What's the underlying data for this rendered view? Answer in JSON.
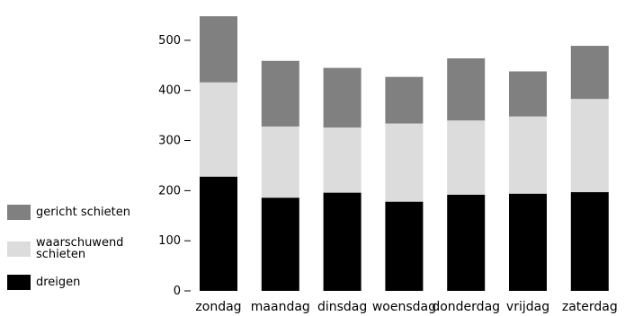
{
  "chart_data": {
    "type": "bar",
    "stacked": true,
    "categories": [
      "zondag",
      "maandag",
      "dinsdag",
      "woensdag",
      "donderdag",
      "vrijdag",
      "zaterdag"
    ],
    "ylim": [
      0,
      550
    ],
    "yticks": [
      0,
      100,
      200,
      300,
      400,
      500
    ],
    "grid": false,
    "legend_position": "left",
    "series": [
      {
        "name": "dreigen",
        "color": "#000000",
        "values": [
          228,
          186,
          196,
          178,
          192,
          194,
          197
        ]
      },
      {
        "name": "waarschuwend\nschieten",
        "color": "#dcdcdc",
        "values": [
          188,
          142,
          130,
          156,
          148,
          154,
          186
        ]
      },
      {
        "name": "gericht schieten",
        "color": "#808080",
        "values": [
          132,
          131,
          119,
          93,
          124,
          90,
          106
        ]
      }
    ]
  }
}
